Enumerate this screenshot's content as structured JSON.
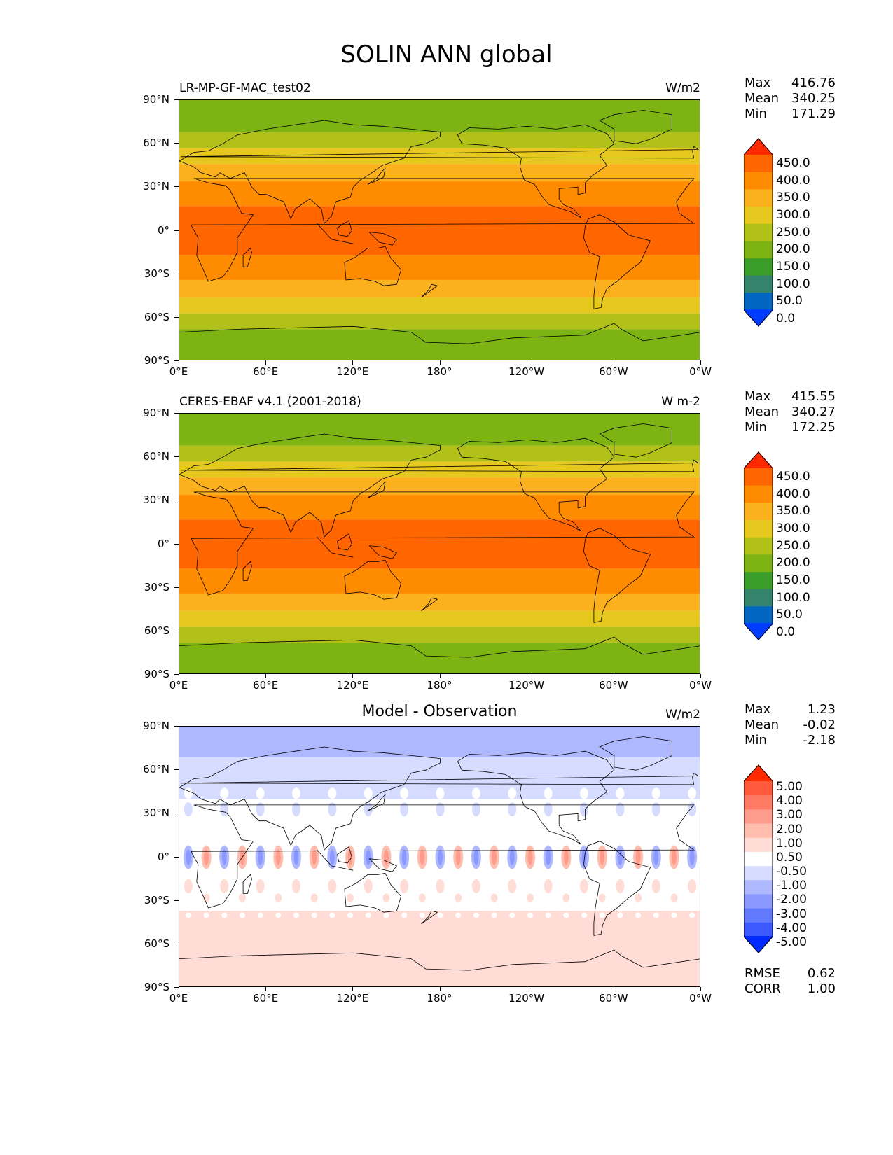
{
  "figure": {
    "title": "SOLIN ANN global"
  },
  "axes": {
    "yticks": [
      "90°N",
      "60°N",
      "30°N",
      "0°",
      "30°S",
      "60°S",
      "90°S"
    ],
    "xticks": [
      "0°E",
      "60°E",
      "120°E",
      "180°",
      "120°W",
      "60°W",
      "0°W"
    ]
  },
  "panels": [
    {
      "label_left": "LR-MP-GF-MAC_test02",
      "label_center": "",
      "units": "W/m2",
      "stats": [
        {
          "key": "Max",
          "value": "416.76"
        },
        {
          "key": "Mean",
          "value": "340.25"
        },
        {
          "key": "Min",
          "value": "171.29"
        }
      ],
      "colorbar_labels": [
        "450.0",
        "400.0",
        "350.0",
        "300.0",
        "250.0",
        "200.0",
        "150.0",
        "100.0",
        "50.0",
        "0.0"
      ]
    },
    {
      "label_left": "CERES-EBAF v4.1 (2001-2018)",
      "label_center": "",
      "units": "W m-2",
      "stats": [
        {
          "key": "Max",
          "value": "415.55"
        },
        {
          "key": "Mean",
          "value": "340.27"
        },
        {
          "key": "Min",
          "value": "172.25"
        }
      ],
      "colorbar_labels": [
        "450.0",
        "400.0",
        "350.0",
        "300.0",
        "250.0",
        "200.0",
        "150.0",
        "100.0",
        "50.0",
        "0.0"
      ]
    },
    {
      "label_left": "",
      "label_center": "Model - Observation",
      "units": "W/m2",
      "stats": [
        {
          "key": "Max",
          "value": "1.23"
        },
        {
          "key": "Mean",
          "value": "-0.02"
        },
        {
          "key": "Min",
          "value": "-2.18"
        }
      ],
      "colorbar_labels": [
        "5.00",
        "4.00",
        "3.00",
        "2.00",
        "1.00",
        "0.50",
        "-0.50",
        "-1.00",
        "-2.00",
        "-3.00",
        "-4.00",
        "-5.00"
      ],
      "extra_stats": [
        {
          "key": "RMSE",
          "value": "0.62"
        },
        {
          "key": "CORR",
          "value": "1.00"
        }
      ]
    }
  ],
  "colors": {
    "abs_scale": [
      "#ff2a00",
      "#ff6600",
      "#ff8c00",
      "#fbb11e",
      "#e6c81f",
      "#b1c11a",
      "#7db413",
      "#3c9e2a",
      "#33846b",
      "#0066c2",
      "#003cff"
    ],
    "diff_scale": [
      "#ff2a00",
      "#ff5a3c",
      "#ff7a63",
      "#ff9b8a",
      "#ffbdae",
      "#ffdcd6",
      "#ffffff",
      "#d6dcff",
      "#aeb8ff",
      "#8a98ff",
      "#637aff",
      "#3c5aff",
      "#002aff"
    ]
  }
}
